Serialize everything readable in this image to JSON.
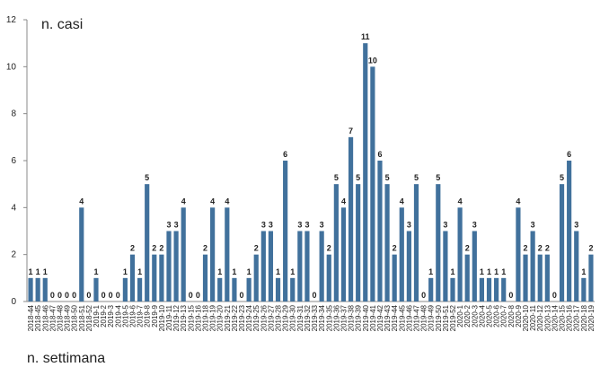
{
  "chart_data": {
    "type": "bar",
    "y_label": "n. casi",
    "x_label": "n. settimana",
    "categories": [
      "2018-44",
      "2018-45",
      "2018-46",
      "2018-47",
      "2018-48",
      "2018-49",
      "2018-50",
      "2018-51",
      "2018-52",
      "2019-1",
      "2019-2",
      "2019-3",
      "2019-4",
      "2019-5",
      "2019-6",
      "2019-7",
      "2019-8",
      "2019-9",
      "2019-10",
      "2019-11",
      "2019-12",
      "2019-13",
      "2019-15",
      "2019-16",
      "2019-18",
      "2019-19",
      "2019-20",
      "2019-21",
      "2019-22",
      "2019-23",
      "2019-24",
      "2019-25",
      "2019-26",
      "2019-27",
      "2019-28",
      "2019-29",
      "2019-30",
      "2019-31",
      "2019-32",
      "2019-33",
      "2019-34",
      "2019-35",
      "2019-36",
      "2019-37",
      "2019-38",
      "2019-39",
      "2019-40",
      "2019-41",
      "2019-42",
      "2019-43",
      "2019-44",
      "2019-45",
      "2019-46",
      "2019-47",
      "2019-48",
      "2019-49",
      "2019-50",
      "2019-51",
      "2019-52",
      "2020-1",
      "2020-2",
      "2020-3",
      "2020-4",
      "2020-5",
      "2020-6",
      "2020-7",
      "2020-8",
      "2020-9",
      "2020-10",
      "2020-11",
      "2020-12",
      "2020-13",
      "2020-14",
      "2020-15",
      "2020-16",
      "2020-17",
      "2020-18",
      "2020-19"
    ],
    "values": [
      1,
      1,
      1,
      0,
      0,
      0,
      0,
      4,
      0,
      1,
      0,
      0,
      0,
      1,
      2,
      1,
      5,
      2,
      2,
      3,
      3,
      4,
      0,
      0,
      2,
      4,
      1,
      4,
      1,
      0,
      1,
      2,
      3,
      3,
      1,
      6,
      1,
      3,
      3,
      0,
      3,
      2,
      5,
      4,
      7,
      5,
      11,
      10,
      6,
      5,
      2,
      4,
      3,
      5,
      0,
      1,
      5,
      3,
      1,
      4,
      2,
      3,
      1,
      1,
      1,
      1,
      0,
      4,
      2,
      3,
      2,
      2,
      0,
      5,
      6,
      3,
      1,
      2
    ],
    "color": "#41719c",
    "ylim": [
      0,
      12
    ],
    "yticks": [
      0,
      2,
      4,
      6,
      8,
      10,
      12
    ],
    "grid": false
  }
}
